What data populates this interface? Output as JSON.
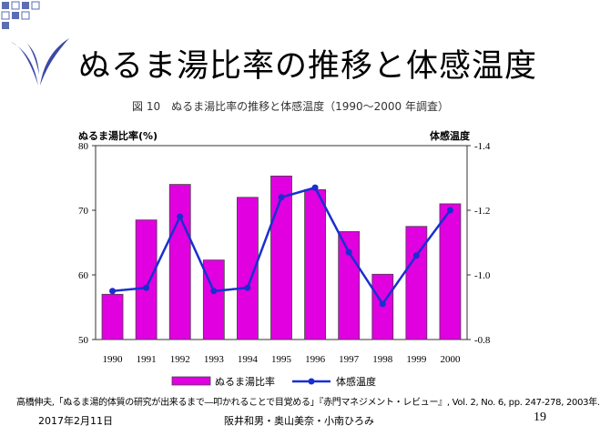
{
  "slide": {
    "title": "ぬるま湯比率の推移と体感温度",
    "citation": "高橋伸夫,「ぬるま湯的体質の研究が出来るまで―叩かれることで目覚める」『赤門マネジメント・レビュー』, Vol. 2, No. 6, pp. 247-278, 2003年.",
    "footer": {
      "date": "2017年2月11日",
      "authors": "阪井和男・奥山美奈・小南ひろみ",
      "page": "19"
    },
    "colors": {
      "accent": "#5b6db3",
      "logo": "#3b48a6",
      "bar": "#e000e0",
      "line": "#1a2fd0"
    }
  },
  "chart_data": {
    "type": "bar",
    "title": "図 10　ぬるま湯比率の推移と体感温度（1990〜2000 年調査）",
    "categories": [
      "1990",
      "1991",
      "1992",
      "1993",
      "1994",
      "1995",
      "1996",
      "1997",
      "1998",
      "1999",
      "2000"
    ],
    "series": [
      {
        "name": "ぬるま湯比率",
        "type": "bar",
        "axis": "left",
        "values": [
          57.0,
          68.5,
          74.0,
          62.3,
          72.0,
          75.3,
          73.2,
          66.7,
          60.1,
          67.5,
          71.0
        ]
      },
      {
        "name": "体感温度",
        "type": "line",
        "axis": "right",
        "values": [
          -0.95,
          -0.96,
          -1.18,
          -0.95,
          -0.96,
          -1.24,
          -1.27,
          -1.07,
          -0.91,
          -1.06,
          -1.2
        ]
      }
    ],
    "ylabel": "ぬるま湯比率(%)",
    "ylim": [
      50,
      80
    ],
    "yticks": [
      "50",
      "60",
      "70",
      "80"
    ],
    "y2label": "体感温度",
    "y2lim": [
      -0.8,
      -1.4
    ],
    "y2ticks": [
      "-0.8",
      "-1.0",
      "-1.2",
      "-1.4"
    ],
    "legend": {
      "bar": "ぬるま湯比率",
      "line": "体感温度",
      "position": "bottom"
    }
  }
}
